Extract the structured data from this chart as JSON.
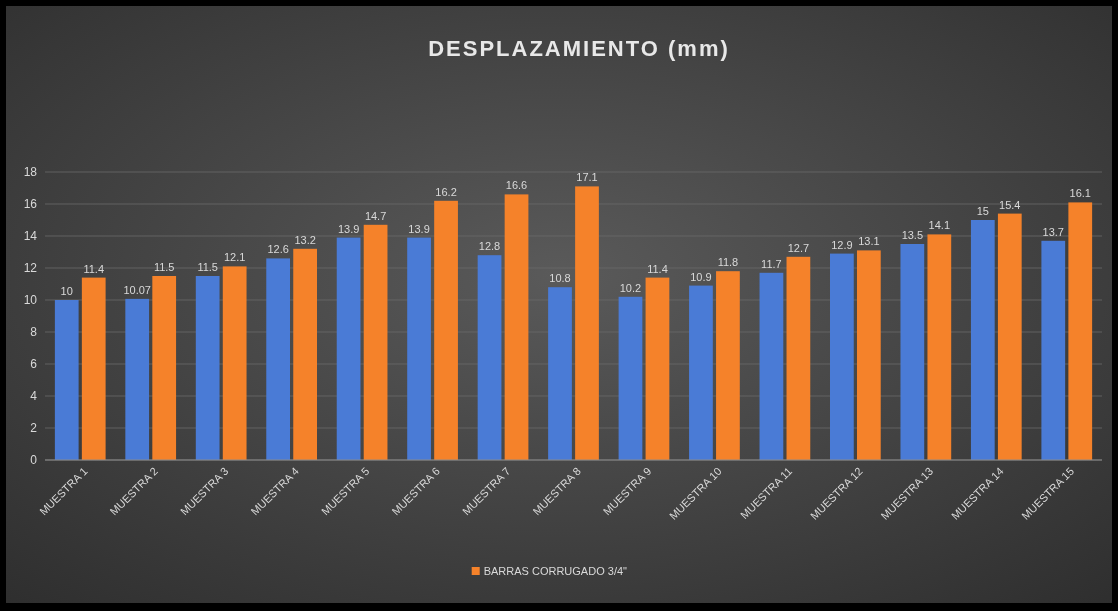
{
  "chart_data": {
    "type": "bar",
    "title": "DESPLAZAMIENTO  (mm)",
    "categories": [
      "MUESTRA 1",
      "MUESTRA 2",
      "MUESTRA 3",
      "MUESTRA 4",
      "MUESTRA 5",
      "MUESTRA 6",
      "MUESTRA 7",
      "MUESTRA 8",
      "MUESTRA 9",
      "MUESTRA 10",
      "MUESTRA 11",
      "MUESTRA 12",
      "MUESTRA 13",
      "MUESTRA 14",
      "MUESTRA 15"
    ],
    "series": [
      {
        "color": "#4a7bd6",
        "values": [
          10,
          10.07,
          11.5,
          12.6,
          13.9,
          13.9,
          12.8,
          10.8,
          10.2,
          10.9,
          11.7,
          12.9,
          13.5,
          15,
          13.7
        ]
      },
      {
        "name": "BARRAS CORRUGADO 3/4\"",
        "color": "#f5822a",
        "values": [
          11.4,
          11.5,
          12.1,
          13.2,
          14.7,
          16.2,
          16.6,
          17.1,
          11.4,
          11.8,
          12.7,
          13.1,
          14.1,
          15.4,
          16.1
        ]
      }
    ],
    "ylim": [
      0,
      18
    ],
    "yticks": [
      0,
      2,
      4,
      6,
      8,
      10,
      12,
      14,
      16,
      18
    ],
    "grid": "y",
    "data_labels": true,
    "legend": "bottom"
  }
}
